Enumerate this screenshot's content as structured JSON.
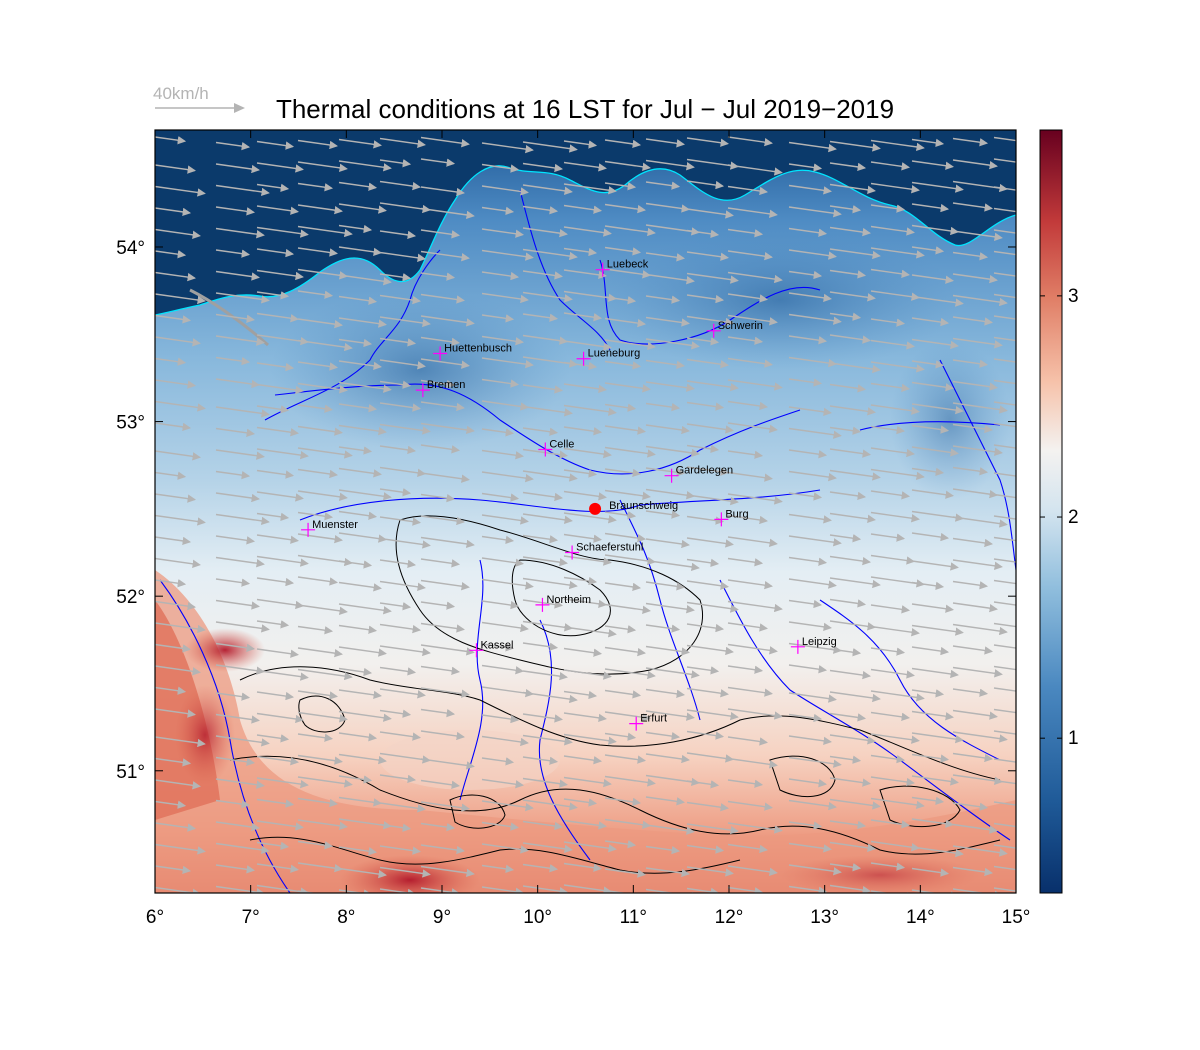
{
  "title": "Thermal conditions at 16 LST for Jul − Jul  2019−2019",
  "wind_scale": {
    "label": "40km/h"
  },
  "map": {
    "lon_range": [
      6,
      15
    ],
    "lat_range": [
      50.3,
      54.67
    ],
    "lon_ticks": [
      {
        "value": 6,
        "label": "6°"
      },
      {
        "value": 7,
        "label": "7°"
      },
      {
        "value": 8,
        "label": "8°"
      },
      {
        "value": 9,
        "label": "9°"
      },
      {
        "value": 10,
        "label": "10°"
      },
      {
        "value": 11,
        "label": "11°"
      },
      {
        "value": 12,
        "label": "12°"
      },
      {
        "value": 13,
        "label": "13°"
      },
      {
        "value": 14,
        "label": "14°"
      },
      {
        "value": 15,
        "label": "15°"
      }
    ],
    "lat_ticks": [
      {
        "value": 51,
        "label": "51°"
      },
      {
        "value": 52,
        "label": "52°"
      },
      {
        "value": 53,
        "label": "53°"
      },
      {
        "value": 54,
        "label": "54°"
      }
    ],
    "reference_site": {
      "name": "Braunschweig",
      "lon": 10.6,
      "lat": 52.5,
      "color": "#ff0000"
    },
    "cities": [
      {
        "name": "Luebeck",
        "lon": 10.68,
        "lat": 53.87
      },
      {
        "name": "Schwerin",
        "lon": 11.84,
        "lat": 53.52
      },
      {
        "name": "Huettenbusch",
        "lon": 8.98,
        "lat": 53.39
      },
      {
        "name": "Lueneburg",
        "lon": 10.48,
        "lat": 53.36
      },
      {
        "name": "Bremen",
        "lon": 8.8,
        "lat": 53.18
      },
      {
        "name": "Celle",
        "lon": 10.08,
        "lat": 52.84
      },
      {
        "name": "Gardelegen",
        "lon": 11.4,
        "lat": 52.69
      },
      {
        "name": "Burg",
        "lon": 11.92,
        "lat": 52.44
      },
      {
        "name": "Muenster",
        "lon": 7.6,
        "lat": 52.38
      },
      {
        "name": "Schaeferstuhl",
        "lon": 10.36,
        "lat": 52.25
      },
      {
        "name": "Northeim",
        "lon": 10.05,
        "lat": 51.95
      },
      {
        "name": "Kassel",
        "lon": 9.36,
        "lat": 51.69
      },
      {
        "name": "Leipzig",
        "lon": 12.72,
        "lat": 51.71
      },
      {
        "name": "Erfurt",
        "lon": 11.03,
        "lat": 51.27
      }
    ],
    "city_marker_color": "#ff00ff",
    "wind_direction_deg_from_east": -8,
    "colors": {
      "sea": "#0b3a6b",
      "coastline": "#00e5ff",
      "rivers": "#0000ff",
      "wind_arrows": "#b4b4b4",
      "terrain_contours": "#000000"
    }
  },
  "colorbar": {
    "range": [
      0.3,
      3.75
    ],
    "ticks": [
      {
        "value": 1,
        "label": "1"
      },
      {
        "value": 2,
        "label": "2"
      },
      {
        "value": 3,
        "label": "3"
      }
    ],
    "colormap": [
      "#08306b",
      "#2f6fae",
      "#6ba4d2",
      "#a9cde3",
      "#f2f2f2",
      "#f6b498",
      "#db5f4c",
      "#b2182b",
      "#67001f"
    ]
  }
}
